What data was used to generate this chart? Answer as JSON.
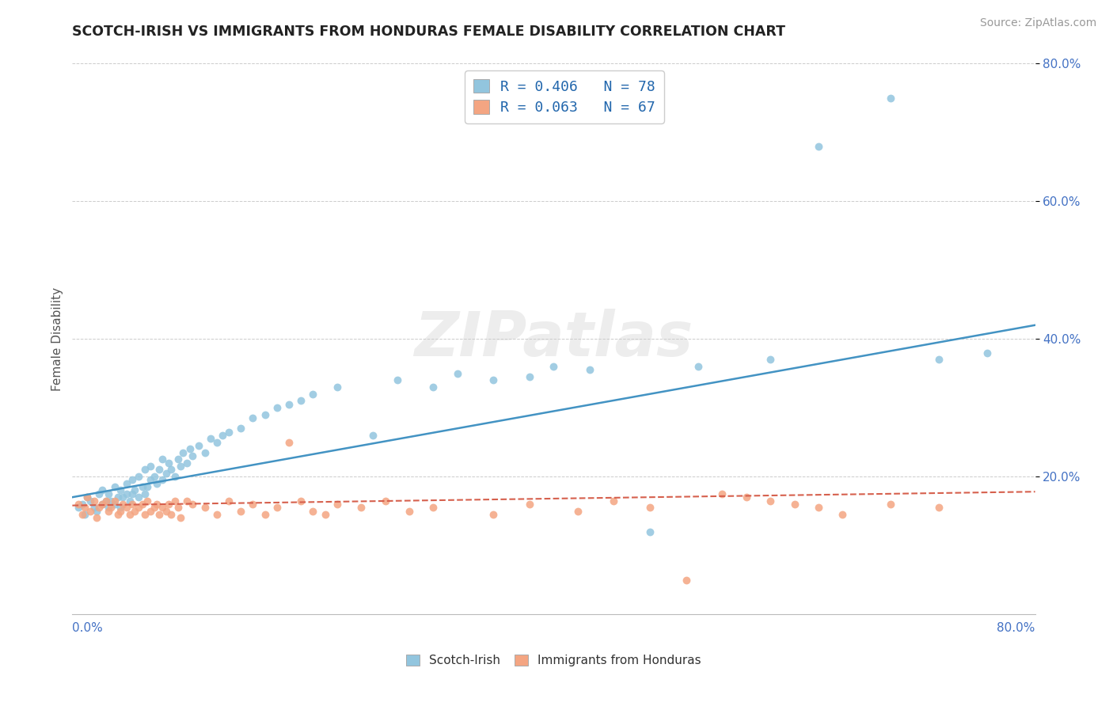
{
  "title": "SCOTCH-IRISH VS IMMIGRANTS FROM HONDURAS FEMALE DISABILITY CORRELATION CHART",
  "source": "Source: ZipAtlas.com",
  "ylabel": "Female Disability",
  "xmin": 0.0,
  "xmax": 0.8,
  "ymin": 0.0,
  "ymax": 0.8,
  "legend_r1": "R = 0.406   N = 78",
  "legend_r2": "R = 0.063   N = 67",
  "series1_color": "#92c5de",
  "series2_color": "#f4a582",
  "trendline1_color": "#4393c3",
  "trendline2_color": "#d6604d",
  "background_color": "#ffffff",
  "watermark": "ZIPatlas",
  "scotch_irish_x": [
    0.005,
    0.008,
    0.01,
    0.012,
    0.015,
    0.018,
    0.02,
    0.022,
    0.025,
    0.025,
    0.028,
    0.03,
    0.03,
    0.032,
    0.035,
    0.035,
    0.038,
    0.04,
    0.04,
    0.042,
    0.045,
    0.045,
    0.048,
    0.05,
    0.05,
    0.052,
    0.055,
    0.055,
    0.058,
    0.06,
    0.06,
    0.062,
    0.065,
    0.065,
    0.068,
    0.07,
    0.072,
    0.075,
    0.075,
    0.078,
    0.08,
    0.082,
    0.085,
    0.088,
    0.09,
    0.092,
    0.095,
    0.098,
    0.1,
    0.105,
    0.11,
    0.115,
    0.12,
    0.125,
    0.13,
    0.14,
    0.15,
    0.16,
    0.17,
    0.18,
    0.19,
    0.2,
    0.22,
    0.25,
    0.27,
    0.3,
    0.32,
    0.35,
    0.38,
    0.4,
    0.43,
    0.48,
    0.52,
    0.58,
    0.62,
    0.68,
    0.72,
    0.76
  ],
  "scotch_irish_y": [
    0.155,
    0.16,
    0.145,
    0.17,
    0.165,
    0.155,
    0.15,
    0.175,
    0.16,
    0.18,
    0.165,
    0.155,
    0.175,
    0.165,
    0.16,
    0.185,
    0.17,
    0.155,
    0.18,
    0.17,
    0.175,
    0.19,
    0.165,
    0.175,
    0.195,
    0.18,
    0.17,
    0.2,
    0.185,
    0.175,
    0.21,
    0.185,
    0.195,
    0.215,
    0.2,
    0.19,
    0.21,
    0.195,
    0.225,
    0.205,
    0.22,
    0.21,
    0.2,
    0.225,
    0.215,
    0.235,
    0.22,
    0.24,
    0.23,
    0.245,
    0.235,
    0.255,
    0.25,
    0.26,
    0.265,
    0.27,
    0.285,
    0.29,
    0.3,
    0.305,
    0.31,
    0.32,
    0.33,
    0.26,
    0.34,
    0.33,
    0.35,
    0.34,
    0.345,
    0.36,
    0.355,
    0.12,
    0.36,
    0.37,
    0.68,
    0.75,
    0.37,
    0.38
  ],
  "honduras_x": [
    0.005,
    0.008,
    0.01,
    0.012,
    0.015,
    0.018,
    0.02,
    0.022,
    0.025,
    0.028,
    0.03,
    0.032,
    0.035,
    0.038,
    0.04,
    0.042,
    0.045,
    0.048,
    0.05,
    0.052,
    0.055,
    0.058,
    0.06,
    0.062,
    0.065,
    0.068,
    0.07,
    0.072,
    0.075,
    0.078,
    0.08,
    0.082,
    0.085,
    0.088,
    0.09,
    0.095,
    0.1,
    0.11,
    0.12,
    0.13,
    0.14,
    0.15,
    0.16,
    0.17,
    0.18,
    0.19,
    0.2,
    0.21,
    0.22,
    0.24,
    0.26,
    0.28,
    0.3,
    0.35,
    0.38,
    0.42,
    0.45,
    0.48,
    0.51,
    0.54,
    0.56,
    0.58,
    0.6,
    0.62,
    0.64,
    0.68,
    0.72
  ],
  "honduras_y": [
    0.16,
    0.145,
    0.155,
    0.17,
    0.15,
    0.165,
    0.14,
    0.155,
    0.16,
    0.165,
    0.15,
    0.155,
    0.165,
    0.145,
    0.15,
    0.16,
    0.155,
    0.145,
    0.16,
    0.15,
    0.155,
    0.16,
    0.145,
    0.165,
    0.15,
    0.155,
    0.16,
    0.145,
    0.155,
    0.15,
    0.16,
    0.145,
    0.165,
    0.155,
    0.14,
    0.165,
    0.16,
    0.155,
    0.145,
    0.165,
    0.15,
    0.16,
    0.145,
    0.155,
    0.25,
    0.165,
    0.15,
    0.145,
    0.16,
    0.155,
    0.165,
    0.15,
    0.155,
    0.145,
    0.16,
    0.15,
    0.165,
    0.155,
    0.05,
    0.175,
    0.17,
    0.165,
    0.16,
    0.155,
    0.145,
    0.16,
    0.155
  ],
  "trendline1_x0": 0.0,
  "trendline1_y0": 0.17,
  "trendline1_x1": 0.8,
  "trendline1_y1": 0.42,
  "trendline2_x0": 0.0,
  "trendline2_y0": 0.158,
  "trendline2_x1": 0.8,
  "trendline2_y1": 0.178
}
